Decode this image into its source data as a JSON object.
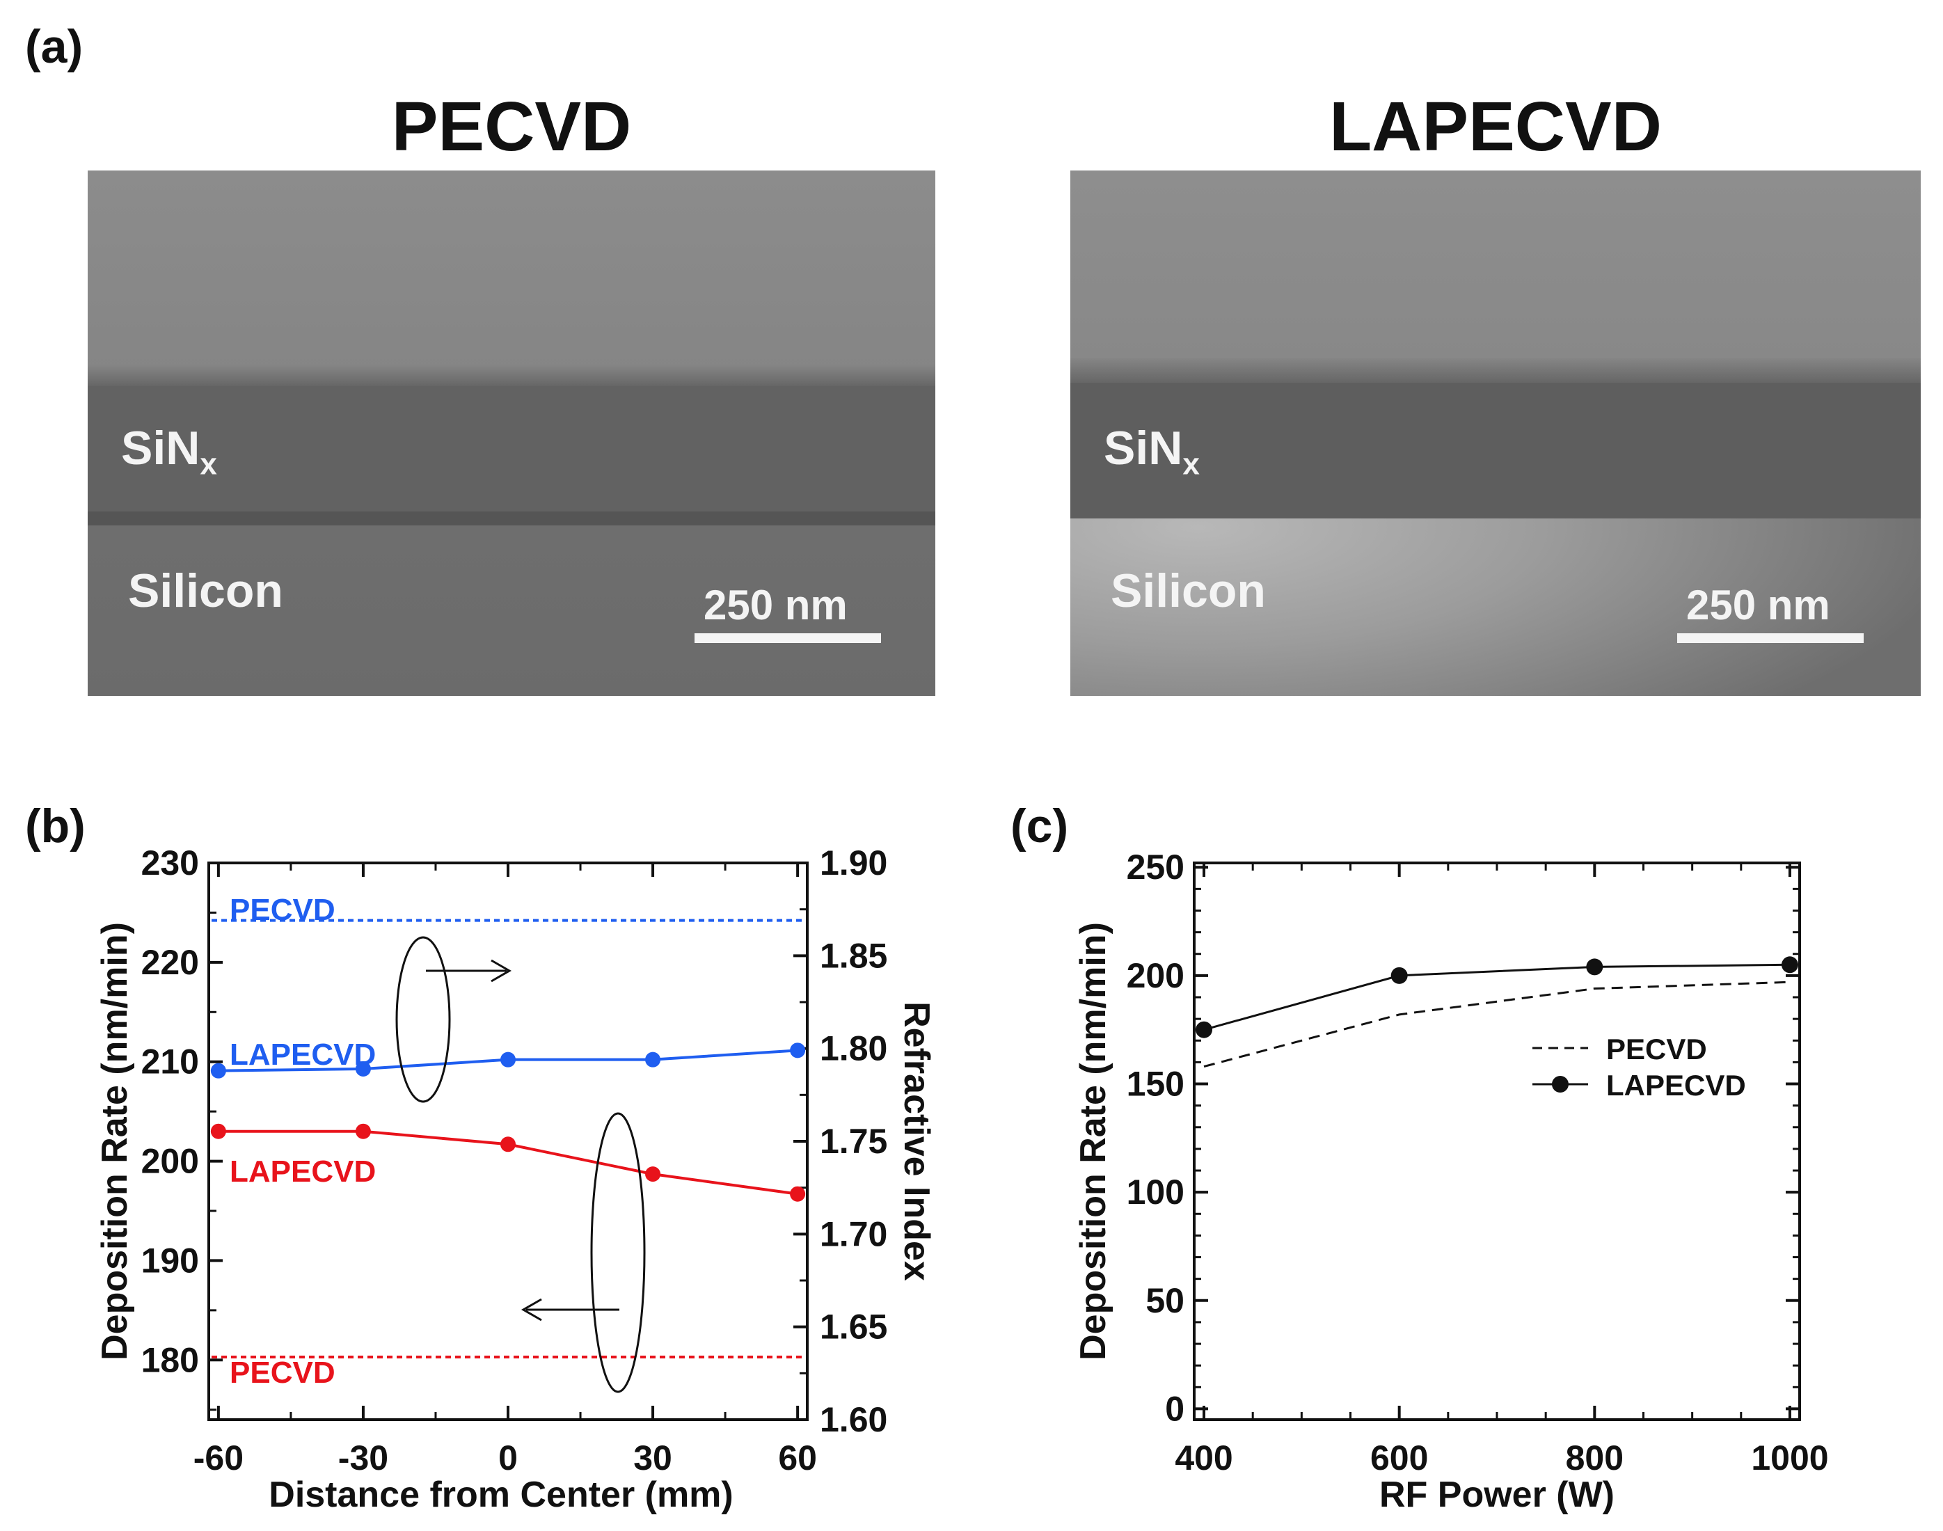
{
  "panels": {
    "a_label": "(a)",
    "b_label": "(b)",
    "c_label": "(c)"
  },
  "sem": {
    "left": {
      "title": "PECVD",
      "layer_top": "SiN",
      "layer_top_sub": "x",
      "substrate": "Silicon",
      "scalebar": "250 nm"
    },
    "right": {
      "title": "LAPECVD",
      "layer_top": "SiN",
      "layer_top_sub": "x",
      "substrate": "Silicon",
      "scalebar": "250 nm"
    }
  },
  "colors": {
    "blue": "#1f5ef0",
    "red": "#e8131b",
    "black": "#111111"
  },
  "chart_data": [
    {
      "id": "b",
      "type": "line",
      "xlabel": "Distance from Center (mm)",
      "ylabel": "Deposition Rate (nm/min)",
      "y2label": "Refractive Index",
      "xlim": [
        -62,
        62
      ],
      "ylim": [
        174,
        230
      ],
      "y2lim": [
        1.6,
        1.9
      ],
      "xticks": [
        "-60",
        "-30",
        "0",
        "30",
        "60"
      ],
      "xtick_values": [
        -60,
        -30,
        0,
        30,
        60
      ],
      "yticks": [
        "180",
        "190",
        "200",
        "210",
        "220",
        "230"
      ],
      "ytick_values": [
        180,
        190,
        200,
        210,
        220,
        230
      ],
      "y2ticks": [
        "1.60",
        "1.65",
        "1.70",
        "1.75",
        "1.80",
        "1.85",
        "1.90"
      ],
      "y2tick_values": [
        1.6,
        1.65,
        1.7,
        1.75,
        1.8,
        1.85,
        1.9
      ],
      "series": [
        {
          "name": "LAPECVD",
          "axis": "y2",
          "color": "#1f5ef0",
          "x": [
            -60,
            -30,
            0,
            30,
            60
          ],
          "values": [
            1.788,
            1.789,
            1.794,
            1.794,
            1.799
          ]
        },
        {
          "name": "LAPECVD",
          "axis": "y",
          "color": "#e8131b",
          "x": [
            -60,
            -30,
            0,
            30,
            60
          ],
          "values": [
            203,
            203,
            201.7,
            198.7,
            196.7
          ]
        },
        {
          "name": "PECVD",
          "axis": "y2",
          "style": "dashed",
          "color": "#1f5ef0",
          "constant": 1.869
        },
        {
          "name": "PECVD",
          "axis": "y",
          "style": "dashed",
          "color": "#e8131b",
          "constant": 180.3
        }
      ],
      "annotations": {
        "pecvd_blue": "PECVD",
        "lapecvd_blue": "LAPECVD",
        "lapecvd_red": "LAPECVD",
        "pecvd_red": "PECVD"
      }
    },
    {
      "id": "c",
      "type": "line",
      "xlabel": "RF Power (W)",
      "ylabel": "Deposition Rate (nm/min)",
      "xlim": [
        390,
        1010
      ],
      "ylim": [
        -5,
        252
      ],
      "xticks": [
        "400",
        "600",
        "800",
        "1000"
      ],
      "xtick_values": [
        400,
        600,
        800,
        1000
      ],
      "yticks": [
        "0",
        "50",
        "100",
        "150",
        "200",
        "250"
      ],
      "ytick_values": [
        0,
        50,
        100,
        150,
        200,
        250
      ],
      "series": [
        {
          "name": "PECVD",
          "style": "dashed",
          "x": [
            400,
            600,
            800,
            1000
          ],
          "values": [
            158,
            182,
            194,
            197
          ]
        },
        {
          "name": "LAPECVD",
          "style": "solid-marker",
          "x": [
            400,
            600,
            800,
            1000
          ],
          "values": [
            175,
            200,
            204,
            205
          ]
        }
      ],
      "legend": [
        "PECVD",
        "LAPECVD"
      ]
    }
  ]
}
